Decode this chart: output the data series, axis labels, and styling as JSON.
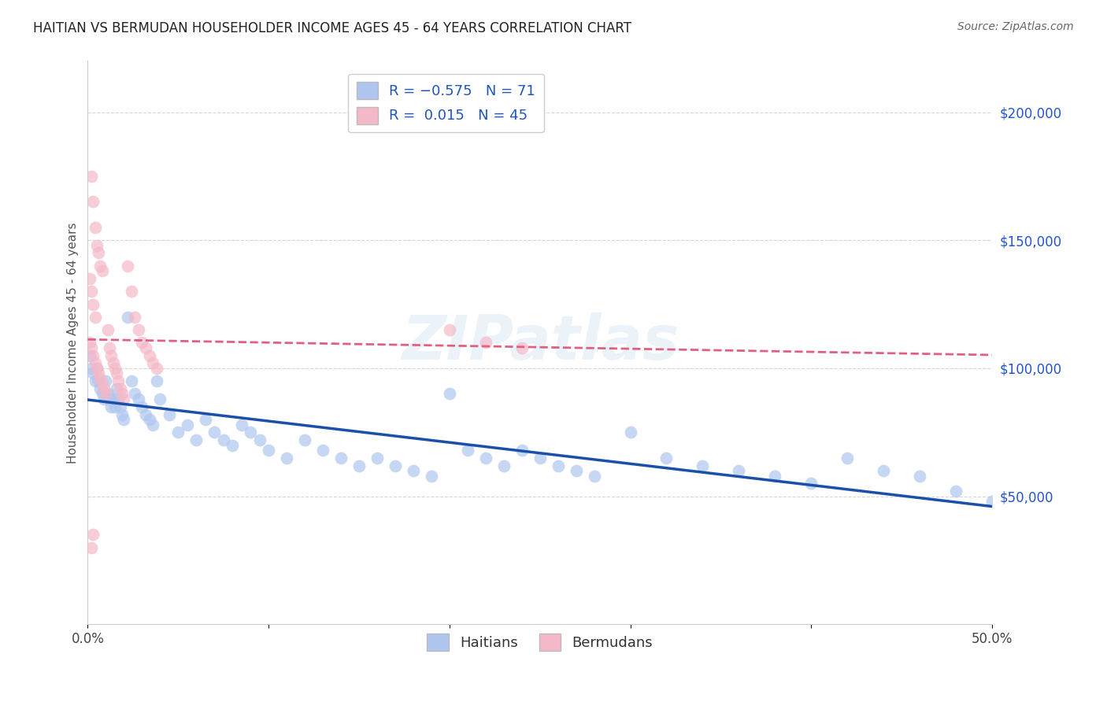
{
  "title": "HAITIAN VS BERMUDAN HOUSEHOLDER INCOME AGES 45 - 64 YEARS CORRELATION CHART",
  "source": "Source: ZipAtlas.com",
  "ylabel": "Householder Income Ages 45 - 64 years",
  "ytick_values": [
    50000,
    100000,
    150000,
    200000
  ],
  "legend_bottom": [
    "Haitians",
    "Bermudans"
  ],
  "haitian_color": "#aec6f0",
  "bermudan_color": "#f5b8c8",
  "haitian_line_color": "#1a4faa",
  "bermudan_line_color": "#e06080",
  "background_color": "#ffffff",
  "grid_color": "#cccccc",
  "xmin": 0.0,
  "xmax": 0.5,
  "ymin": 0,
  "ymax": 220000,
  "haitian_x": [
    0.001,
    0.002,
    0.003,
    0.004,
    0.005,
    0.006,
    0.007,
    0.008,
    0.009,
    0.01,
    0.011,
    0.012,
    0.013,
    0.014,
    0.015,
    0.016,
    0.017,
    0.018,
    0.019,
    0.02,
    0.022,
    0.024,
    0.026,
    0.028,
    0.03,
    0.032,
    0.034,
    0.036,
    0.038,
    0.04,
    0.045,
    0.05,
    0.055,
    0.06,
    0.065,
    0.07,
    0.075,
    0.08,
    0.085,
    0.09,
    0.095,
    0.1,
    0.11,
    0.12,
    0.13,
    0.14,
    0.15,
    0.16,
    0.17,
    0.18,
    0.19,
    0.2,
    0.21,
    0.22,
    0.23,
    0.24,
    0.25,
    0.26,
    0.27,
    0.28,
    0.3,
    0.32,
    0.34,
    0.36,
    0.38,
    0.4,
    0.42,
    0.44,
    0.46,
    0.48,
    0.5
  ],
  "haitian_y": [
    105000,
    100000,
    98000,
    95000,
    100000,
    95000,
    92000,
    90000,
    88000,
    95000,
    90000,
    88000,
    85000,
    88000,
    85000,
    92000,
    88000,
    85000,
    82000,
    80000,
    120000,
    95000,
    90000,
    88000,
    85000,
    82000,
    80000,
    78000,
    95000,
    88000,
    82000,
    75000,
    78000,
    72000,
    80000,
    75000,
    72000,
    70000,
    78000,
    75000,
    72000,
    68000,
    65000,
    72000,
    68000,
    65000,
    62000,
    65000,
    62000,
    60000,
    58000,
    90000,
    68000,
    65000,
    62000,
    68000,
    65000,
    62000,
    60000,
    58000,
    75000,
    65000,
    62000,
    60000,
    58000,
    55000,
    65000,
    60000,
    58000,
    52000,
    48000
  ],
  "bermudan_x": [
    0.001,
    0.002,
    0.003,
    0.004,
    0.005,
    0.006,
    0.007,
    0.008,
    0.009,
    0.01,
    0.011,
    0.012,
    0.013,
    0.014,
    0.015,
    0.016,
    0.017,
    0.018,
    0.019,
    0.02,
    0.022,
    0.024,
    0.026,
    0.028,
    0.03,
    0.032,
    0.034,
    0.036,
    0.038,
    0.002,
    0.003,
    0.004,
    0.005,
    0.006,
    0.007,
    0.008,
    0.001,
    0.002,
    0.003,
    0.004,
    0.2,
    0.22,
    0.24,
    0.002,
    0.003
  ],
  "bermudan_y": [
    110000,
    108000,
    105000,
    102000,
    100000,
    98000,
    96000,
    94000,
    92000,
    90000,
    115000,
    108000,
    105000,
    102000,
    100000,
    98000,
    95000,
    92000,
    90000,
    88000,
    140000,
    130000,
    120000,
    115000,
    110000,
    108000,
    105000,
    102000,
    100000,
    175000,
    165000,
    155000,
    148000,
    145000,
    140000,
    138000,
    135000,
    130000,
    125000,
    120000,
    115000,
    110000,
    108000,
    30000,
    35000
  ]
}
